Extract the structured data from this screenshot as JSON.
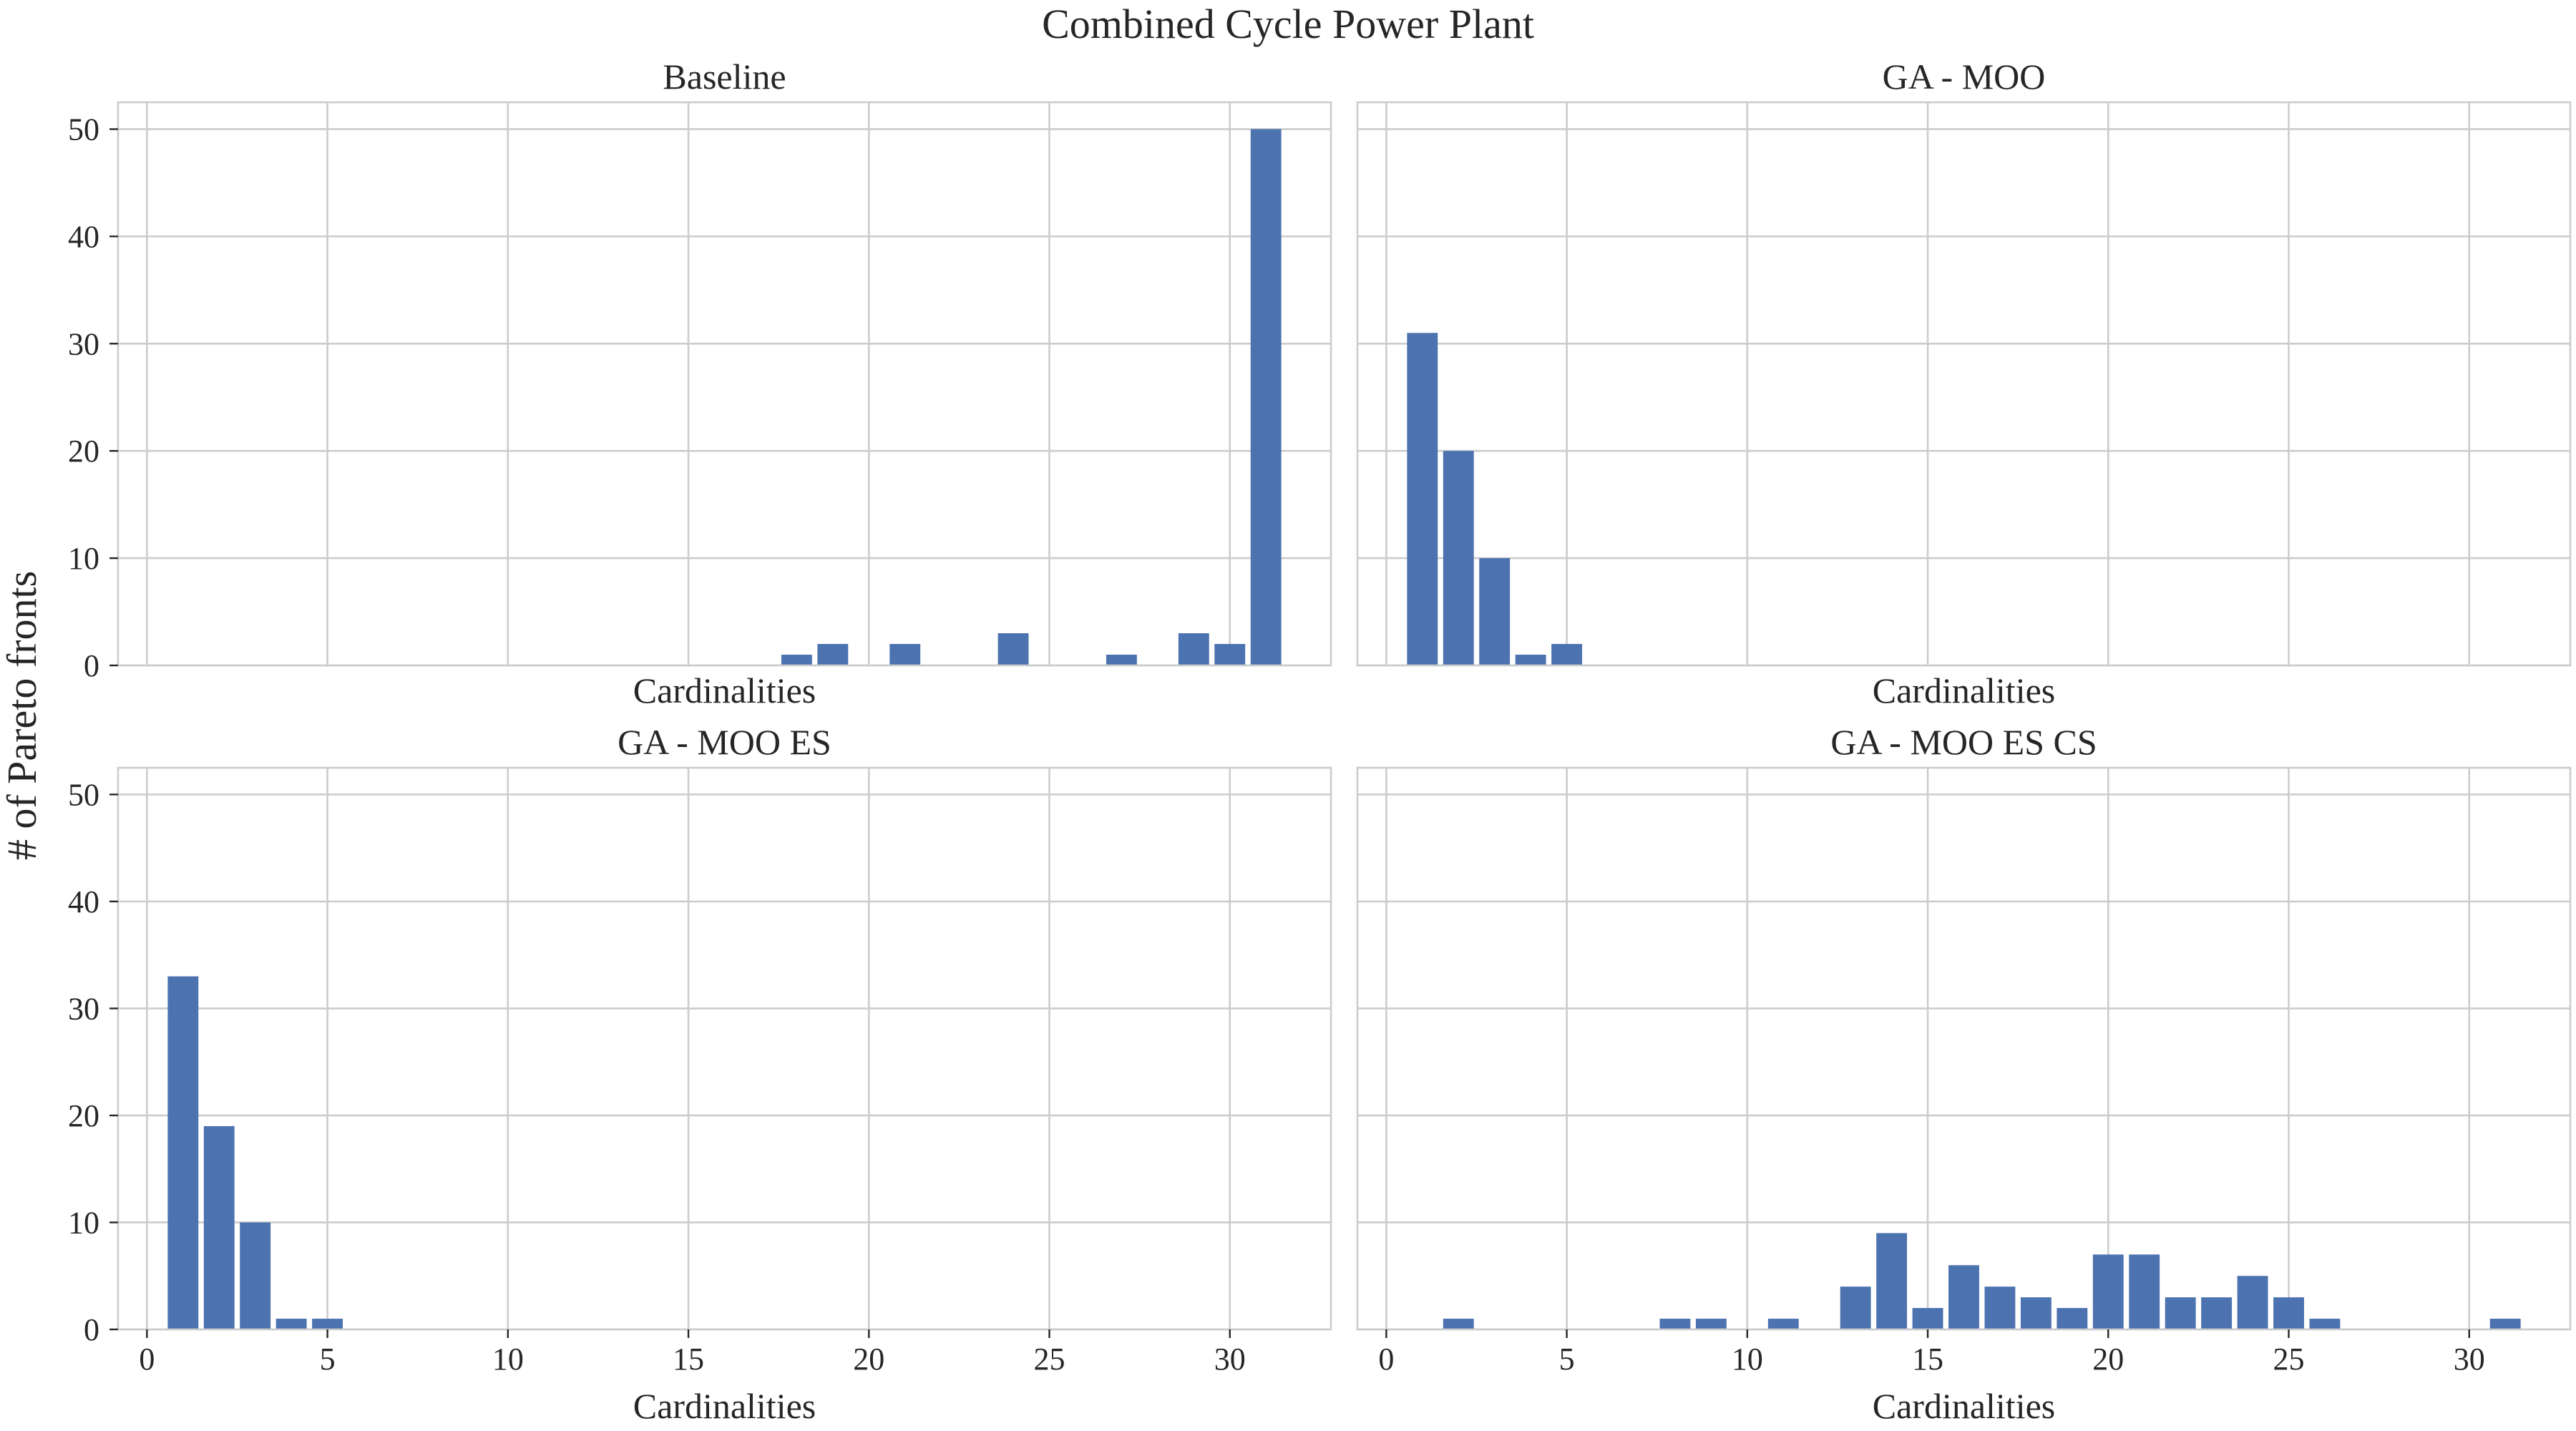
{
  "figure": {
    "title": "Combined Cycle Power Plant",
    "ylabel": "# of Pareto fronts"
  },
  "chart_data": [
    {
      "type": "bar",
      "title": "Baseline",
      "xlabel": "Cardinalities",
      "ylabel": "# of Pareto fronts",
      "xlim": [
        -0.8,
        32.8
      ],
      "ylim": [
        0,
        52.5
      ],
      "xticks": [
        0,
        5,
        10,
        15,
        20,
        25,
        30
      ],
      "yticks": [
        0,
        10,
        20,
        30,
        40,
        50
      ],
      "grid": true,
      "bar_color": "#4c72b0",
      "x": [
        18,
        19,
        21,
        24,
        27,
        29,
        30,
        31
      ],
      "values": [
        1,
        2,
        2,
        3,
        1,
        3,
        2,
        50
      ]
    },
    {
      "type": "bar",
      "title": "GA - MOO",
      "xlabel": "Cardinalities",
      "ylabel": "# of Pareto fronts",
      "xlim": [
        -0.8,
        32.8
      ],
      "ylim": [
        0,
        52.5
      ],
      "xticks": [
        0,
        5,
        10,
        15,
        20,
        25,
        30
      ],
      "yticks": [
        0,
        10,
        20,
        30,
        40,
        50
      ],
      "grid": true,
      "bar_color": "#4c72b0",
      "x": [
        1,
        2,
        3,
        4,
        5
      ],
      "values": [
        31,
        20,
        10,
        1,
        2
      ]
    },
    {
      "type": "bar",
      "title": "GA - MOO ES",
      "xlabel": "Cardinalities",
      "ylabel": "# of Pareto fronts",
      "xlim": [
        -0.8,
        32.8
      ],
      "ylim": [
        0,
        52.5
      ],
      "xticks": [
        0,
        5,
        10,
        15,
        20,
        25,
        30
      ],
      "yticks": [
        0,
        10,
        20,
        30,
        40,
        50
      ],
      "grid": true,
      "bar_color": "#4c72b0",
      "x": [
        1,
        2,
        3,
        4,
        5
      ],
      "values": [
        33,
        19,
        10,
        1,
        1
      ]
    },
    {
      "type": "bar",
      "title": "GA - MOO ES CS",
      "xlabel": "Cardinalities",
      "ylabel": "# of Pareto fronts",
      "xlim": [
        -0.8,
        32.8
      ],
      "ylim": [
        0,
        52.5
      ],
      "xticks": [
        0,
        5,
        10,
        15,
        20,
        25,
        30
      ],
      "yticks": [
        0,
        10,
        20,
        30,
        40,
        50
      ],
      "grid": true,
      "bar_color": "#4c72b0",
      "x": [
        2,
        8,
        9,
        11,
        13,
        14,
        15,
        16,
        17,
        18,
        19,
        20,
        21,
        22,
        23,
        24,
        25,
        26,
        31
      ],
      "values": [
        1,
        1,
        1,
        1,
        4,
        9,
        2,
        6,
        4,
        3,
        2,
        7,
        7,
        3,
        3,
        5,
        3,
        1,
        1
      ]
    }
  ]
}
